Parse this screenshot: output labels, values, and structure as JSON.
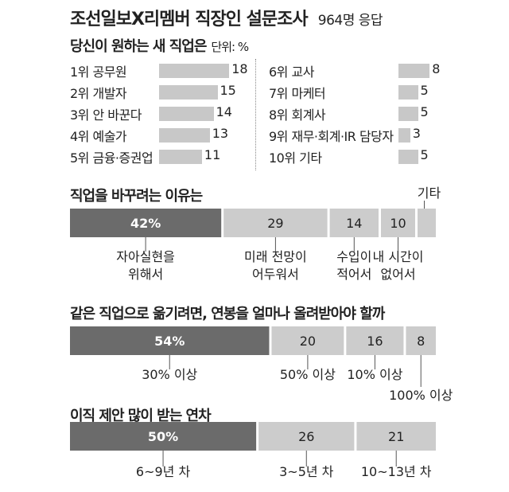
{
  "header": {
    "title": "조선일보X리멤버 직장인 설문조사",
    "sample": "964명 응답"
  },
  "chart_data": [
    {
      "type": "bar",
      "title": "당신이 원하는 새 직업은",
      "unit": "단위: %",
      "categories": [
        "1위 공무원",
        "2위 개발자",
        "3위 안 바꾼다",
        "4위 예술가",
        "5위 금융·증권업",
        "6위 교사",
        "7위 마케터",
        "8위 회계사",
        "9위 재무·회계·IR 담당자",
        "10위 기타"
      ],
      "values": [
        18,
        15,
        14,
        13,
        11,
        8,
        5,
        5,
        3,
        5
      ],
      "bar_color": "#c8c8c8"
    },
    {
      "type": "bar",
      "title": "직업을 바꾸려는 이유는",
      "categories": [
        "자아실현을 위해서",
        "미래 전망이 어두워서",
        "수입이 적어서",
        "내 시간이 없어서",
        "기타"
      ],
      "values": [
        42,
        29,
        14,
        10,
        5
      ],
      "value_labels": [
        "42%",
        "29",
        "14",
        "10",
        ""
      ],
      "colors": [
        "#6b6b6b",
        "#cccccc",
        "#cccccc",
        "#cccccc",
        "#cccccc"
      ]
    },
    {
      "type": "bar",
      "title": "같은 직업으로 옮기려면, 연봉을 얼마나 올려받아야 할까",
      "categories": [
        "30% 이상",
        "50% 이상",
        "10% 이상",
        "100% 이상"
      ],
      "values": [
        54,
        20,
        16,
        8
      ],
      "value_labels": [
        "54%",
        "20",
        "16",
        "8"
      ],
      "colors": [
        "#6b6b6b",
        "#cccccc",
        "#cccccc",
        "#cccccc"
      ]
    },
    {
      "type": "bar",
      "title": "이직 제안 많이 받는 연차",
      "categories": [
        "6~9년 차",
        "3~5년 차",
        "10~13년 차"
      ],
      "values": [
        50,
        26,
        21
      ],
      "value_labels": [
        "50%",
        "26",
        "21"
      ],
      "colors": [
        "#6b6b6b",
        "#cccccc",
        "#cccccc"
      ]
    }
  ]
}
